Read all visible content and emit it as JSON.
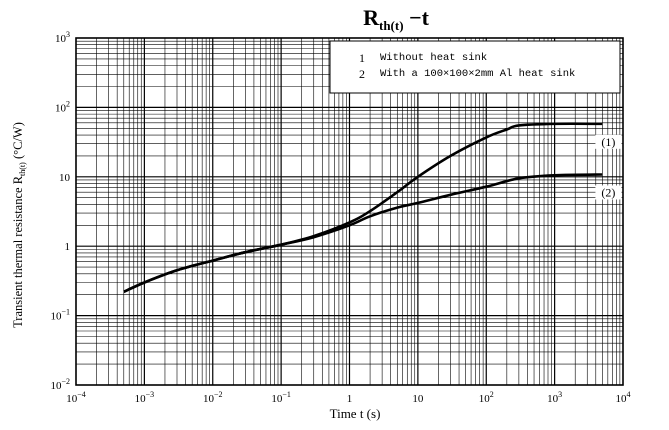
{
  "chart_data": {
    "type": "line",
    "title_main": "R",
    "title_sub": "th(t)",
    "title_rest": " −t",
    "xlabel": "Time t (s)",
    "ylabel": "Transient thermal resistance R",
    "ylabel_sub": "th(t)",
    "ylabel_unit": " (°C/W)",
    "x_scale": "log",
    "y_scale": "log",
    "xlim": [
      0.0001,
      10000
    ],
    "ylim": [
      0.01,
      1000
    ],
    "grid": true,
    "x_ticks": [
      {
        "base": "10",
        "exp": "−4"
      },
      {
        "base": "10",
        "exp": "−3"
      },
      {
        "base": "10",
        "exp": "−2"
      },
      {
        "base": "10",
        "exp": "−1"
      },
      {
        "base": "1",
        "exp": ""
      },
      {
        "base": "10",
        "exp": ""
      },
      {
        "base": "10",
        "exp": "2"
      },
      {
        "base": "10",
        "exp": "3"
      },
      {
        "base": "10",
        "exp": "4"
      }
    ],
    "y_ticks": [
      {
        "base": "10",
        "exp": "−2"
      },
      {
        "base": "10",
        "exp": "−1"
      },
      {
        "base": "1",
        "exp": ""
      },
      {
        "base": "10",
        "exp": ""
      },
      {
        "base": "10",
        "exp": "2"
      },
      {
        "base": "10",
        "exp": "3"
      }
    ],
    "legend": {
      "position": "top-right",
      "entries": [
        {
          "num": "1",
          "text": "Without heat sink"
        },
        {
          "num": "2",
          "text": "With a 100×100×2mm Al heat sink"
        }
      ]
    },
    "series": [
      {
        "label": "(1)",
        "x": [
          0.0005,
          0.001,
          0.003,
          0.01,
          0.03,
          0.1,
          0.3,
          1,
          2,
          5,
          10,
          30,
          100,
          200,
          300,
          1000,
          5000
        ],
        "y": [
          0.22,
          0.3,
          0.45,
          0.62,
          0.82,
          1.05,
          1.4,
          2.2,
          3.2,
          6,
          10,
          20,
          37,
          48,
          55,
          58,
          58
        ]
      },
      {
        "label": "(2)",
        "x": [
          0.0005,
          0.001,
          0.003,
          0.01,
          0.03,
          0.1,
          0.3,
          1,
          2,
          5,
          10,
          30,
          100,
          300,
          1000,
          5000
        ],
        "y": [
          0.22,
          0.3,
          0.45,
          0.62,
          0.82,
          1.05,
          1.35,
          2,
          2.7,
          3.6,
          4.2,
          5.5,
          7.2,
          9.5,
          10.5,
          10.8
        ]
      }
    ]
  }
}
